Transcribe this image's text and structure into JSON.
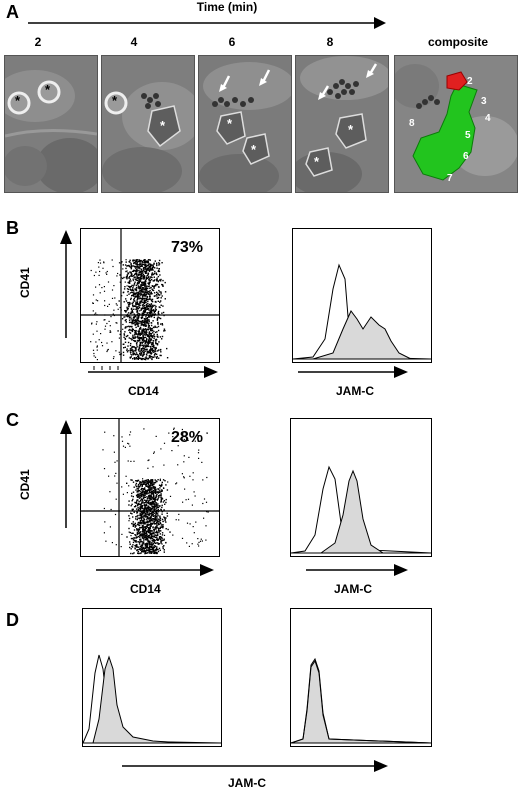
{
  "figure": {
    "panels": {
      "a": {
        "letter": "A",
        "time_axis_label": "Time (min)",
        "time_points": [
          "2",
          "4",
          "6",
          "8"
        ],
        "composite_label": "composite",
        "composite_numbers": [
          "2",
          "3",
          "4",
          "5",
          "6",
          "7",
          "8"
        ],
        "marker_symbol": "*"
      },
      "b": {
        "letter": "B",
        "dot_xlabel": "CD14",
        "dot_ylabel": "CD41",
        "percent": "73%",
        "hist_xlabel": "JAM-C"
      },
      "c": {
        "letter": "C",
        "dot_xlabel": "CD14",
        "dot_ylabel": "CD41",
        "percent": "28%",
        "hist_xlabel": "JAM-C"
      },
      "d": {
        "letter": "D",
        "hist_xlabel": "JAM-C"
      }
    },
    "colors": {
      "composite_green": "#22c41e",
      "composite_red": "#e02020",
      "histogram_fill": "#d9d9d9"
    }
  }
}
